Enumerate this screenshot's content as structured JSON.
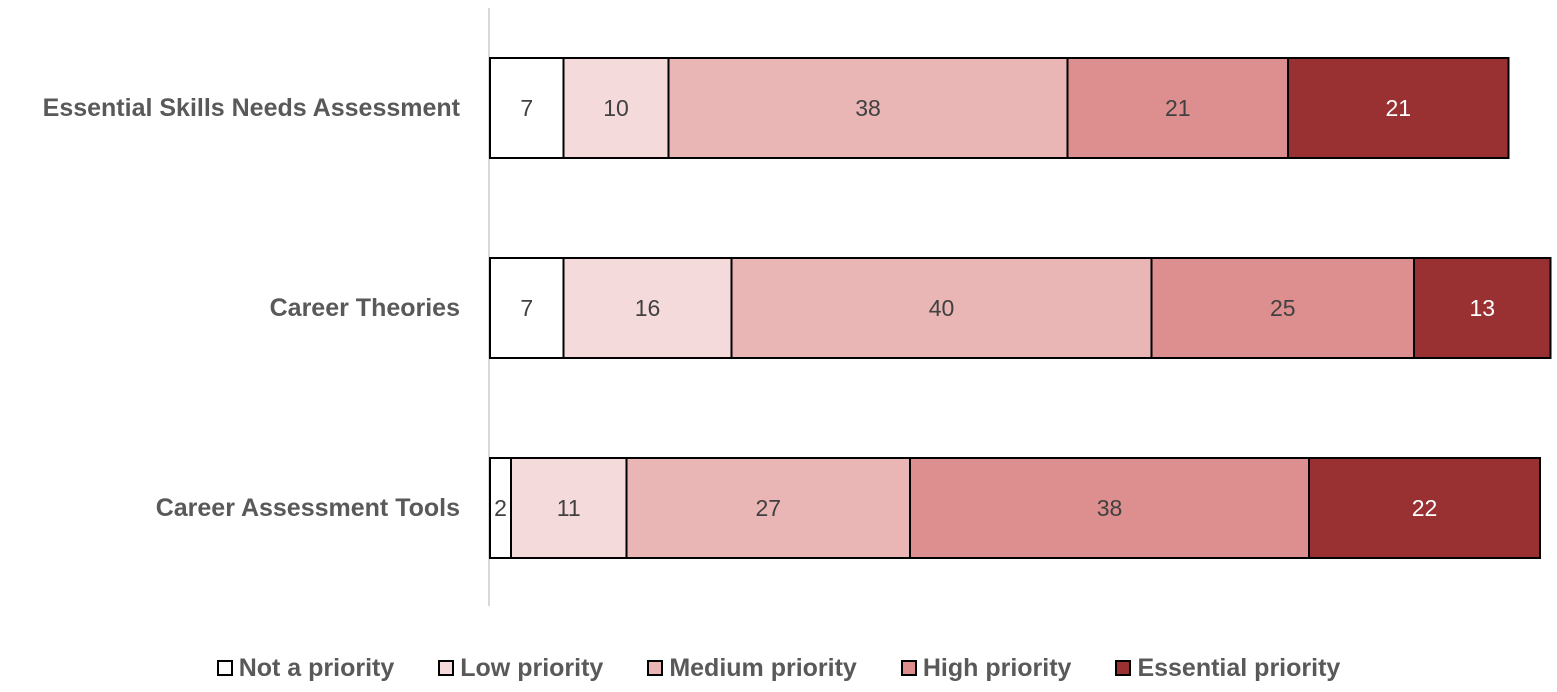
{
  "chart_data": {
    "type": "bar",
    "orientation": "horizontal",
    "stacked": true,
    "categories": [
      "Essential Skills Needs Assessment",
      "Career Theories",
      "Career Assessment Tools"
    ],
    "series": [
      {
        "name": "Not a priority",
        "values": [
          7,
          7,
          2
        ],
        "color": "#ffffff",
        "label_color": "#404040"
      },
      {
        "name": "Low priority",
        "values": [
          10,
          16,
          11
        ],
        "color": "#f5dadb",
        "label_color": "#404040"
      },
      {
        "name": "Medium priority",
        "values": [
          38,
          40,
          27
        ],
        "color": "#e9b5b5",
        "label_color": "#404040"
      },
      {
        "name": "High priority",
        "values": [
          21,
          25,
          38
        ],
        "color": "#dd8e8e",
        "label_color": "#404040"
      },
      {
        "name": "Essential priority",
        "values": [
          21,
          13,
          22
        ],
        "color": "#993032",
        "label_color": "#ffffff"
      }
    ],
    "title": "",
    "xlabel": "",
    "ylabel": "",
    "grid": false,
    "data_labels": true,
    "legend_position": "bottom"
  }
}
